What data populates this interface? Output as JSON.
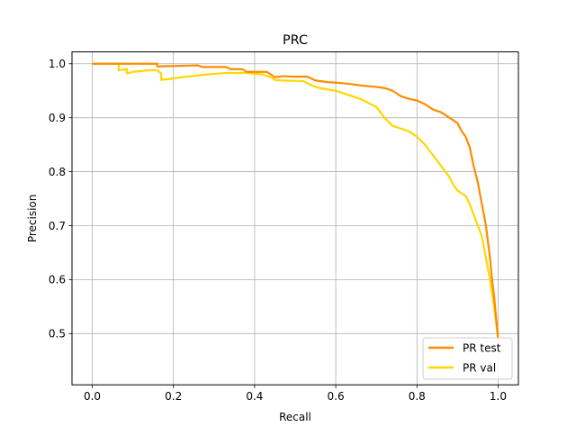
{
  "chart_data": {
    "type": "line",
    "title": "PRC",
    "xlabel": "Recall",
    "ylabel": "Precision",
    "xlim": [
      -0.05,
      1.05
    ],
    "ylim": [
      0.405,
      1.022
    ],
    "xticks": [
      0.0,
      0.2,
      0.4,
      0.6,
      0.8,
      1.0
    ],
    "xtick_labels": [
      "0.0",
      "0.2",
      "0.4",
      "0.6",
      "0.8",
      "1.0"
    ],
    "yticks": [
      0.5,
      0.6,
      0.7,
      0.8,
      0.9,
      1.0
    ],
    "ytick_labels": [
      "0.5",
      "0.6",
      "0.7",
      "0.8",
      "0.9",
      "1.0"
    ],
    "grid": true,
    "legend_position": "lower right",
    "series": [
      {
        "name": "PR test",
        "color": "#ff8c00",
        "x": [
          0.0,
          0.16,
          0.16,
          0.26,
          0.27,
          0.33,
          0.34,
          0.37,
          0.38,
          0.4,
          0.43,
          0.44,
          0.45,
          0.47,
          0.5,
          0.53,
          0.55,
          0.58,
          0.6,
          0.63,
          0.66,
          0.7,
          0.72,
          0.74,
          0.75,
          0.76,
          0.78,
          0.8,
          0.82,
          0.84,
          0.86,
          0.88,
          0.9,
          0.91,
          0.92,
          0.93,
          0.94,
          0.95,
          0.96,
          0.97,
          0.98,
          0.985,
          0.99,
          0.995,
          1.0
        ],
        "y": [
          1.0,
          1.0,
          0.995,
          0.997,
          0.994,
          0.994,
          0.99,
          0.99,
          0.985,
          0.985,
          0.985,
          0.98,
          0.975,
          0.977,
          0.976,
          0.976,
          0.969,
          0.966,
          0.965,
          0.963,
          0.96,
          0.957,
          0.955,
          0.95,
          0.945,
          0.94,
          0.935,
          0.932,
          0.925,
          0.915,
          0.91,
          0.9,
          0.89,
          0.875,
          0.865,
          0.845,
          0.81,
          0.78,
          0.74,
          0.7,
          0.64,
          0.6,
          0.57,
          0.53,
          0.49
        ]
      },
      {
        "name": "PR val",
        "color": "#ffd700",
        "x": [
          0.0,
          0.065,
          0.065,
          0.085,
          0.085,
          0.1,
          0.14,
          0.16,
          0.17,
          0.17,
          0.22,
          0.28,
          0.33,
          0.38,
          0.42,
          0.44,
          0.45,
          0.47,
          0.52,
          0.54,
          0.56,
          0.6,
          0.62,
          0.66,
          0.7,
          0.72,
          0.74,
          0.76,
          0.78,
          0.8,
          0.82,
          0.84,
          0.86,
          0.88,
          0.89,
          0.9,
          0.92,
          0.93,
          0.94,
          0.95,
          0.96,
          0.97,
          0.98,
          0.99,
          1.0
        ],
        "y": [
          1.0,
          1.0,
          0.988,
          0.99,
          0.982,
          0.985,
          0.988,
          0.988,
          0.982,
          0.97,
          0.975,
          0.98,
          0.983,
          0.983,
          0.98,
          0.975,
          0.97,
          0.969,
          0.968,
          0.96,
          0.955,
          0.95,
          0.945,
          0.935,
          0.92,
          0.9,
          0.885,
          0.88,
          0.875,
          0.865,
          0.85,
          0.83,
          0.81,
          0.79,
          0.775,
          0.765,
          0.755,
          0.74,
          0.72,
          0.7,
          0.68,
          0.64,
          0.6,
          0.55,
          0.49
        ]
      }
    ]
  }
}
